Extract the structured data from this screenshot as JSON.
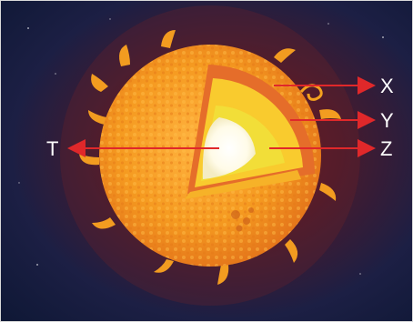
{
  "diagram": {
    "labels": {
      "x": "X",
      "y": "Y",
      "z": "Z",
      "t": "T"
    },
    "colors": {
      "space": "#101a38",
      "glow": "#8a2a1e",
      "photosphere": "#f5961c",
      "outer_shell": "#e8742a",
      "middle_layer": "#f7c52a",
      "inner_layer": "#f3dc3a",
      "core": "#ffffff",
      "arrow": "#e0282a"
    },
    "icon": "sun-cross-section-icon"
  }
}
